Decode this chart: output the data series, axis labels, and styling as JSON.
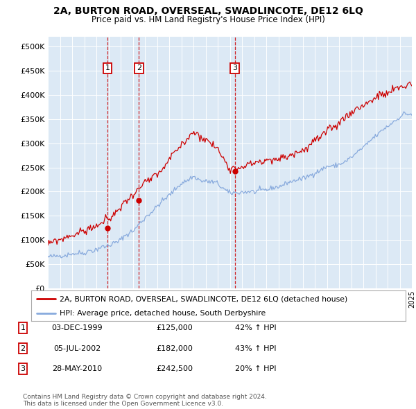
{
  "title": "2A, BURTON ROAD, OVERSEAL, SWADLINCOTE, DE12 6LQ",
  "subtitle": "Price paid vs. HM Land Registry's House Price Index (HPI)",
  "background_color": "#dce9f5",
  "plot_bg_color": "#dce9f5",
  "y_ticks": [
    0,
    50000,
    100000,
    150000,
    200000,
    250000,
    300000,
    350000,
    400000,
    450000,
    500000
  ],
  "y_labels": [
    "£0",
    "£50K",
    "£100K",
    "£150K",
    "£200K",
    "£250K",
    "£300K",
    "£350K",
    "£400K",
    "£450K",
    "£500K"
  ],
  "ylim": [
    0,
    520000
  ],
  "x_start_year": 1995,
  "x_end_year": 2025,
  "sale_points": [
    {
      "year": 1999.92,
      "price": 125000,
      "label": "1"
    },
    {
      "year": 2002.5,
      "price": 182000,
      "label": "2"
    },
    {
      "year": 2010.41,
      "price": 242500,
      "label": "3"
    }
  ],
  "sale_dates": [
    "03-DEC-1999",
    "05-JUL-2002",
    "28-MAY-2010"
  ],
  "sale_prices_str": [
    "£125,000",
    "£182,000",
    "£242,500"
  ],
  "sale_hpi_pct": [
    "42% ↑ HPI",
    "43% ↑ HPI",
    "20% ↑ HPI"
  ],
  "red_line_color": "#cc0000",
  "blue_line_color": "#88aadd",
  "legend_label_red": "2A, BURTON ROAD, OVERSEAL, SWADLINCOTE, DE12 6LQ (detached house)",
  "legend_label_blue": "HPI: Average price, detached house, South Derbyshire",
  "footer_line1": "Contains HM Land Registry data © Crown copyright and database right 2024.",
  "footer_line2": "This data is licensed under the Open Government Licence v3.0."
}
